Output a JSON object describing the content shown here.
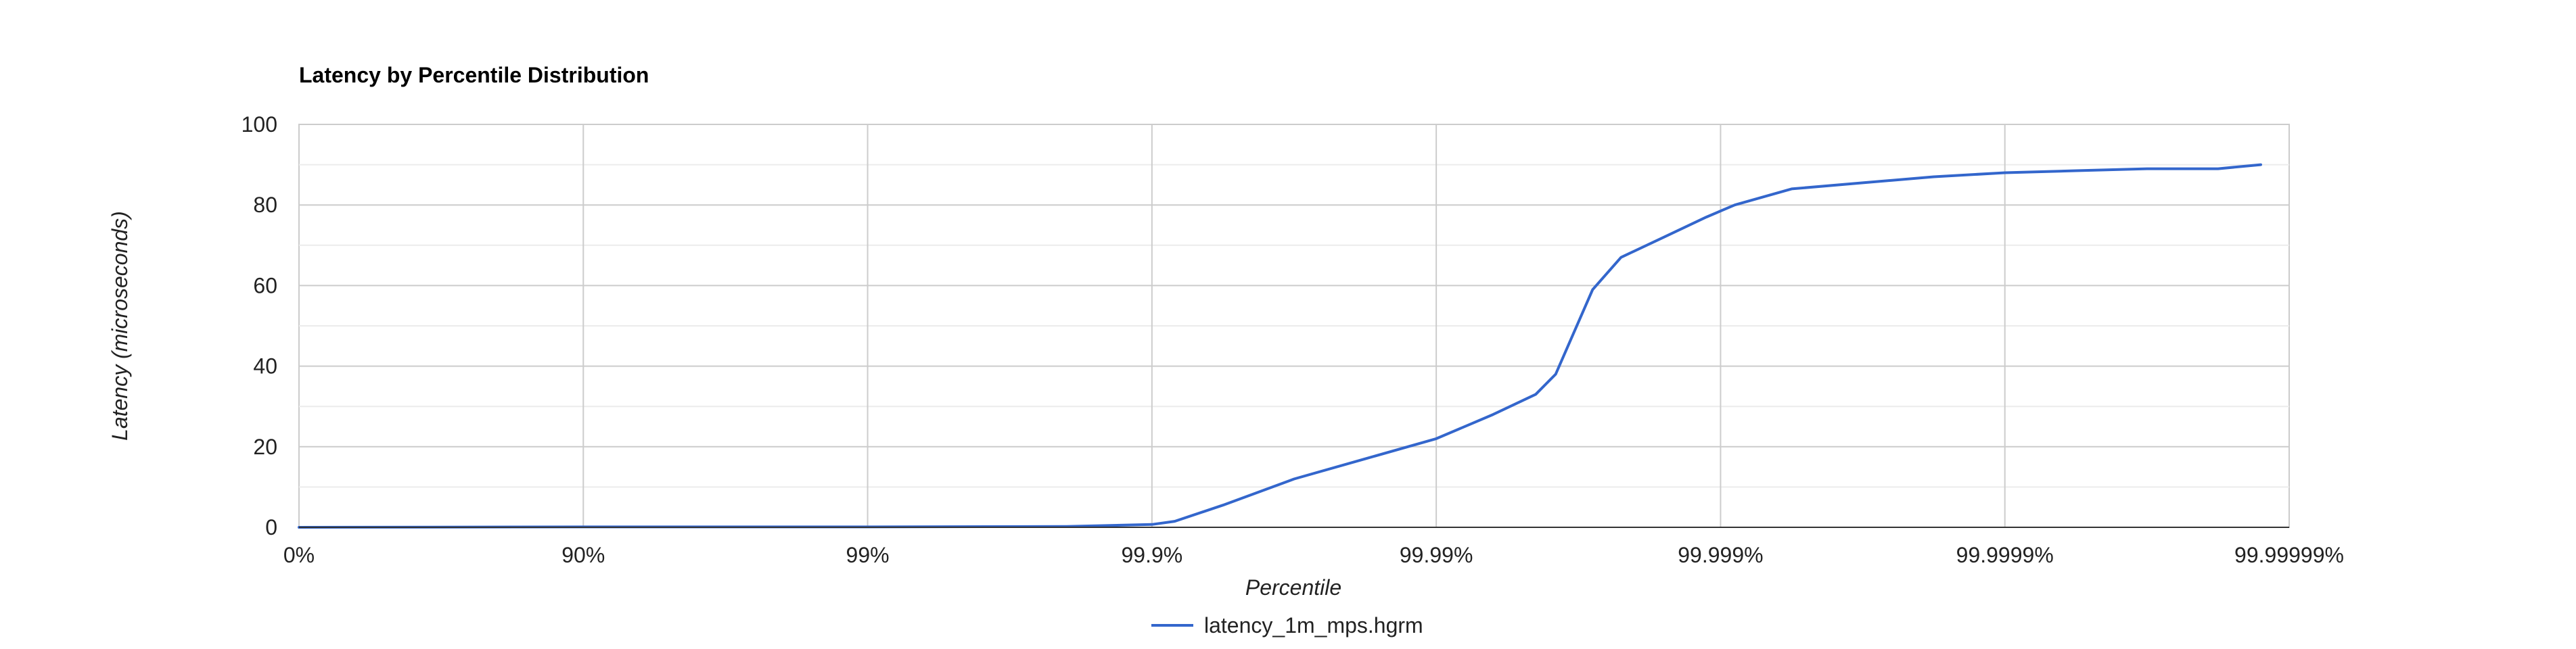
{
  "chart_data": {
    "type": "line",
    "title": "Latency by Percentile Distribution",
    "xlabel": "Percentile",
    "ylabel": "Latency (microseconds)",
    "x_scale": "log-percentile (nines)",
    "x_tick_labels": [
      "0%",
      "90%",
      "99%",
      "99.9%",
      "99.99%",
      "99.999%",
      "99.9999%",
      "99.99999%"
    ],
    "y_ticks": [
      0,
      20,
      40,
      60,
      80,
      100
    ],
    "ylim": [
      0,
      100
    ],
    "xlim_nines": [
      0,
      7
    ],
    "grid": true,
    "legend_position": "bottom",
    "series": [
      {
        "name": "latency_1m_mps.hgrm",
        "color": "#3366cc",
        "x_nines": [
          0,
          1,
          2,
          2.7,
          3.0,
          3.08,
          3.25,
          3.5,
          3.75,
          4.0,
          4.2,
          4.35,
          4.42,
          4.55,
          4.65,
          4.8,
          4.95,
          5.05,
          5.25,
          5.5,
          5.75,
          6.0,
          6.25,
          6.5,
          6.75,
          6.9
        ],
        "values": [
          0,
          0.1,
          0.1,
          0.2,
          0.7,
          1.5,
          5.5,
          12,
          17,
          22,
          28,
          33,
          38,
          59,
          67,
          72,
          77,
          80,
          84,
          85.5,
          87,
          88,
          88.5,
          89,
          89,
          90
        ]
      }
    ]
  }
}
